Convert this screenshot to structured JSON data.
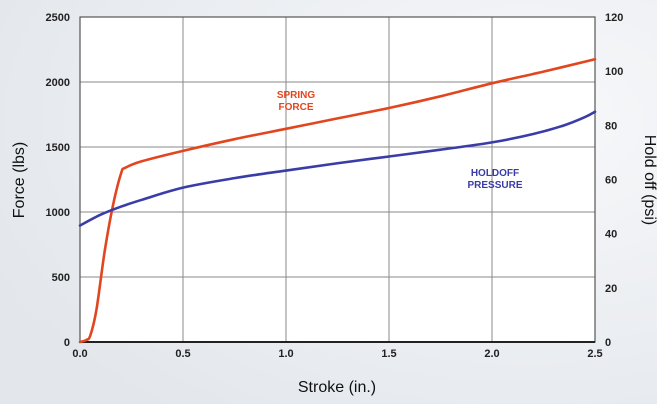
{
  "chart_data": {
    "type": "line",
    "title": "",
    "xlabel": "Stroke (in.)",
    "ylabel_left": "Force (lbs)",
    "ylabel_right": "Hold off (psi)",
    "xlim": [
      0,
      2.5
    ],
    "ylim_left": [
      0,
      2500
    ],
    "ylim_right": [
      0,
      120
    ],
    "x_ticks": [
      "0.0",
      "0.5",
      "1.0",
      "1.5",
      "2.0",
      "2.5"
    ],
    "y_left_ticks": [
      "0",
      "500",
      "1000",
      "1500",
      "2000",
      "2500"
    ],
    "y_right_ticks": [
      "0",
      "20",
      "40",
      "60",
      "80",
      "100",
      "120"
    ],
    "grid": true,
    "series": [
      {
        "name": "SPRING FORCE",
        "label_lines": [
          "SPRING",
          "FORCE"
        ],
        "axis": "left",
        "color": "#e2461f",
        "x": [
          0.0,
          0.03,
          0.05,
          0.08,
          0.12,
          0.16,
          0.2,
          0.22,
          0.3,
          0.5,
          0.75,
          1.0,
          1.25,
          1.5,
          1.75,
          2.0,
          2.25,
          2.5
        ],
        "y": [
          0,
          15,
          50,
          250,
          700,
          1050,
          1300,
          1340,
          1390,
          1470,
          1560,
          1640,
          1720,
          1800,
          1890,
          1990,
          2080,
          2175
        ]
      },
      {
        "name": "HOLDOFF PRESSURE",
        "label_lines": [
          "HOLDOFF",
          "PRESSURE"
        ],
        "axis": "right",
        "color": "#3a3ca8",
        "x": [
          0.0,
          0.1,
          0.2,
          0.3,
          0.5,
          0.75,
          1.0,
          1.25,
          1.5,
          1.75,
          2.0,
          2.2,
          2.35,
          2.45,
          2.5
        ],
        "y": [
          43,
          47,
          50,
          52.5,
          57,
          60.5,
          63.3,
          66,
          68.5,
          71,
          73.7,
          76.8,
          80,
          83,
          85
        ]
      }
    ]
  }
}
